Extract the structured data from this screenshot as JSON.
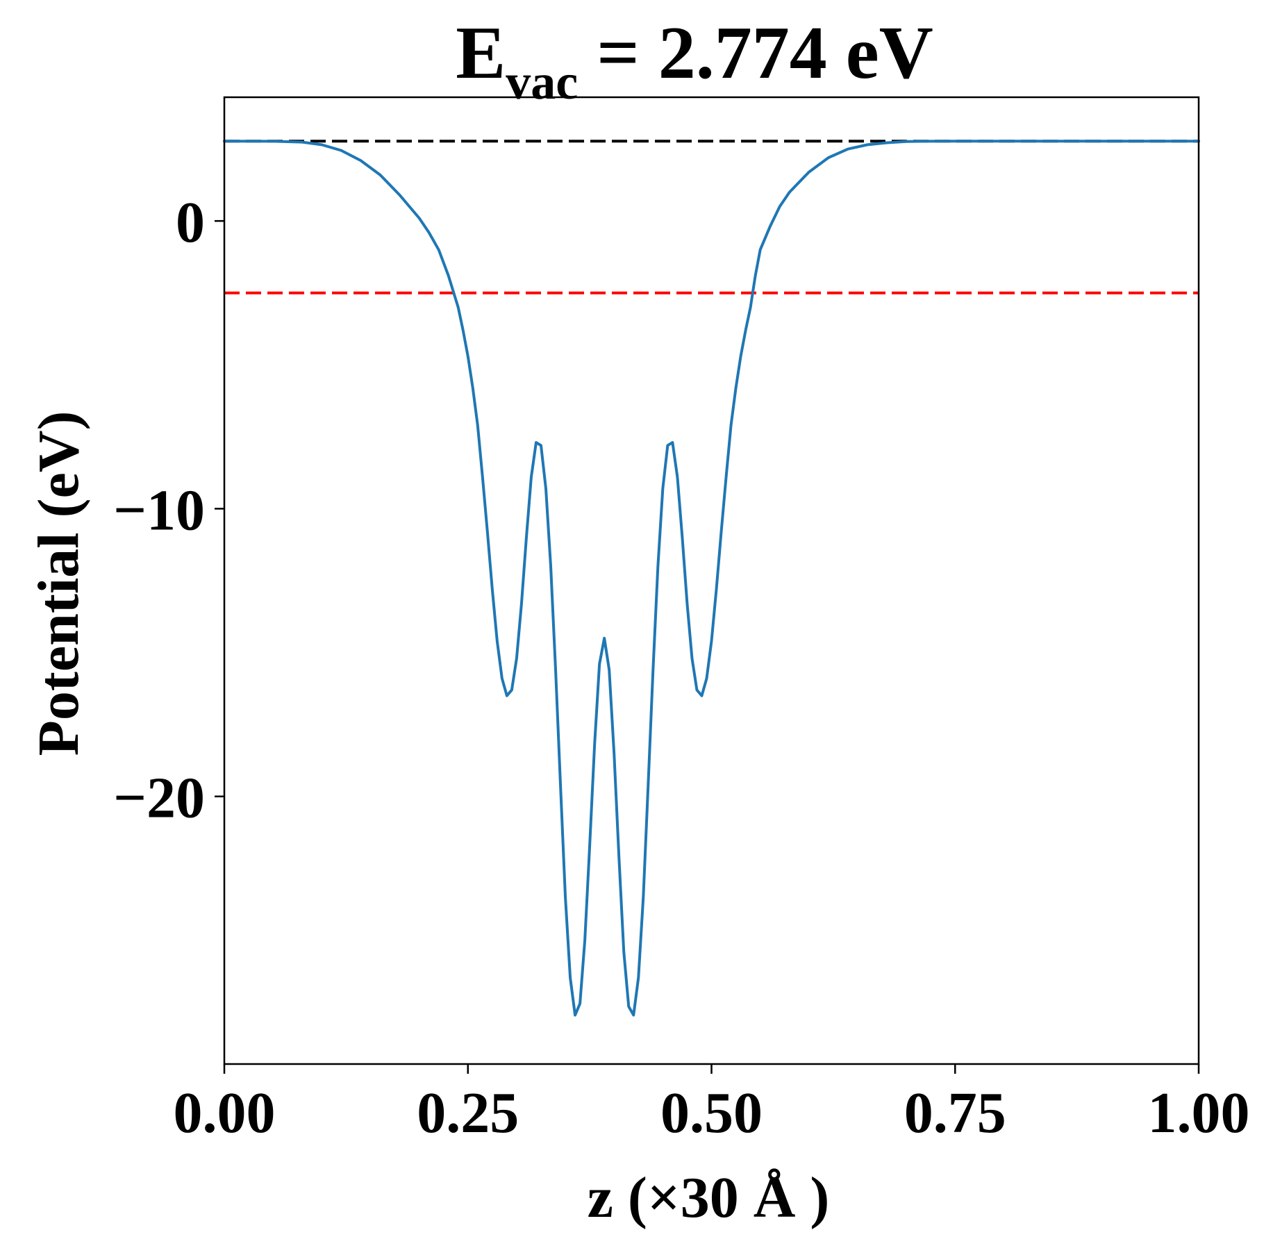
{
  "chart_data": {
    "type": "line",
    "title": {
      "main": "E",
      "subscript": "vac",
      "rest": " = 2.774 eV"
    },
    "xlabel": "z (×30 Å )",
    "ylabel": "Potential (eV)",
    "xlim": [
      0,
      1
    ],
    "ylim": [
      -29.3,
      4.3
    ],
    "xticks": [
      {
        "value": 0.0,
        "label": "0.00"
      },
      {
        "value": 0.25,
        "label": "0.25"
      },
      {
        "value": 0.5,
        "label": "0.50"
      },
      {
        "value": 0.75,
        "label": "0.75"
      },
      {
        "value": 1.0,
        "label": "1.00"
      }
    ],
    "yticks": [
      {
        "value": 0,
        "label": "0"
      },
      {
        "value": -10,
        "label": "−10"
      },
      {
        "value": -20,
        "label": "−20"
      }
    ],
    "grid": false,
    "hlines": [
      {
        "y": 2.774,
        "color": "#000000",
        "style": "dashed",
        "x_range": [
          0.0,
          1.0
        ]
      },
      {
        "y": -2.5,
        "color": "#ff0000",
        "style": "dashed",
        "x_range": [
          0.0,
          1.0
        ]
      }
    ],
    "series": [
      {
        "color": "#1f77b4",
        "x": [
          0.0,
          0.05,
          0.08,
          0.1,
          0.12,
          0.14,
          0.16,
          0.18,
          0.2,
          0.21,
          0.22,
          0.23,
          0.24,
          0.245,
          0.25,
          0.255,
          0.26,
          0.265,
          0.27,
          0.275,
          0.28,
          0.285,
          0.29,
          0.295,
          0.3,
          0.305,
          0.31,
          0.315,
          0.32,
          0.325,
          0.33,
          0.335,
          0.34,
          0.345,
          0.35,
          0.355,
          0.36,
          0.365,
          0.37,
          0.375,
          0.38,
          0.385,
          0.39,
          0.395,
          0.4,
          0.405,
          0.41,
          0.415,
          0.42,
          0.425,
          0.43,
          0.435,
          0.44,
          0.445,
          0.45,
          0.455,
          0.46,
          0.465,
          0.47,
          0.475,
          0.48,
          0.485,
          0.49,
          0.495,
          0.5,
          0.505,
          0.51,
          0.515,
          0.52,
          0.525,
          0.53,
          0.535,
          0.54,
          0.545,
          0.55,
          0.56,
          0.57,
          0.58,
          0.6,
          0.62,
          0.64,
          0.66,
          0.68,
          0.7,
          0.72,
          0.75,
          0.8,
          0.9,
          1.0
        ],
        "y": [
          2.774,
          2.77,
          2.74,
          2.65,
          2.45,
          2.1,
          1.6,
          0.9,
          0.1,
          -0.4,
          -1.0,
          -1.9,
          -3.0,
          -3.8,
          -4.7,
          -5.8,
          -7.1,
          -8.9,
          -10.8,
          -12.8,
          -14.6,
          -15.9,
          -16.5,
          -16.3,
          -15.2,
          -13.3,
          -11.0,
          -8.9,
          -7.7,
          -7.8,
          -9.3,
          -12.0,
          -15.6,
          -19.6,
          -23.5,
          -26.3,
          -27.6,
          -27.2,
          -25.0,
          -21.7,
          -18.2,
          -15.4,
          -14.5,
          -15.6,
          -18.5,
          -22.1,
          -25.4,
          -27.3,
          -27.6,
          -26.3,
          -23.5,
          -19.6,
          -15.6,
          -12.0,
          -9.3,
          -7.8,
          -7.7,
          -8.9,
          -11.0,
          -13.3,
          -15.2,
          -16.3,
          -16.5,
          -15.9,
          -14.6,
          -12.8,
          -10.8,
          -8.9,
          -7.1,
          -5.8,
          -4.7,
          -3.8,
          -3.0,
          -1.9,
          -1.0,
          -0.2,
          0.5,
          1.0,
          1.7,
          2.2,
          2.5,
          2.65,
          2.72,
          2.76,
          2.77,
          2.774,
          2.774,
          2.774,
          2.774
        ]
      }
    ]
  }
}
